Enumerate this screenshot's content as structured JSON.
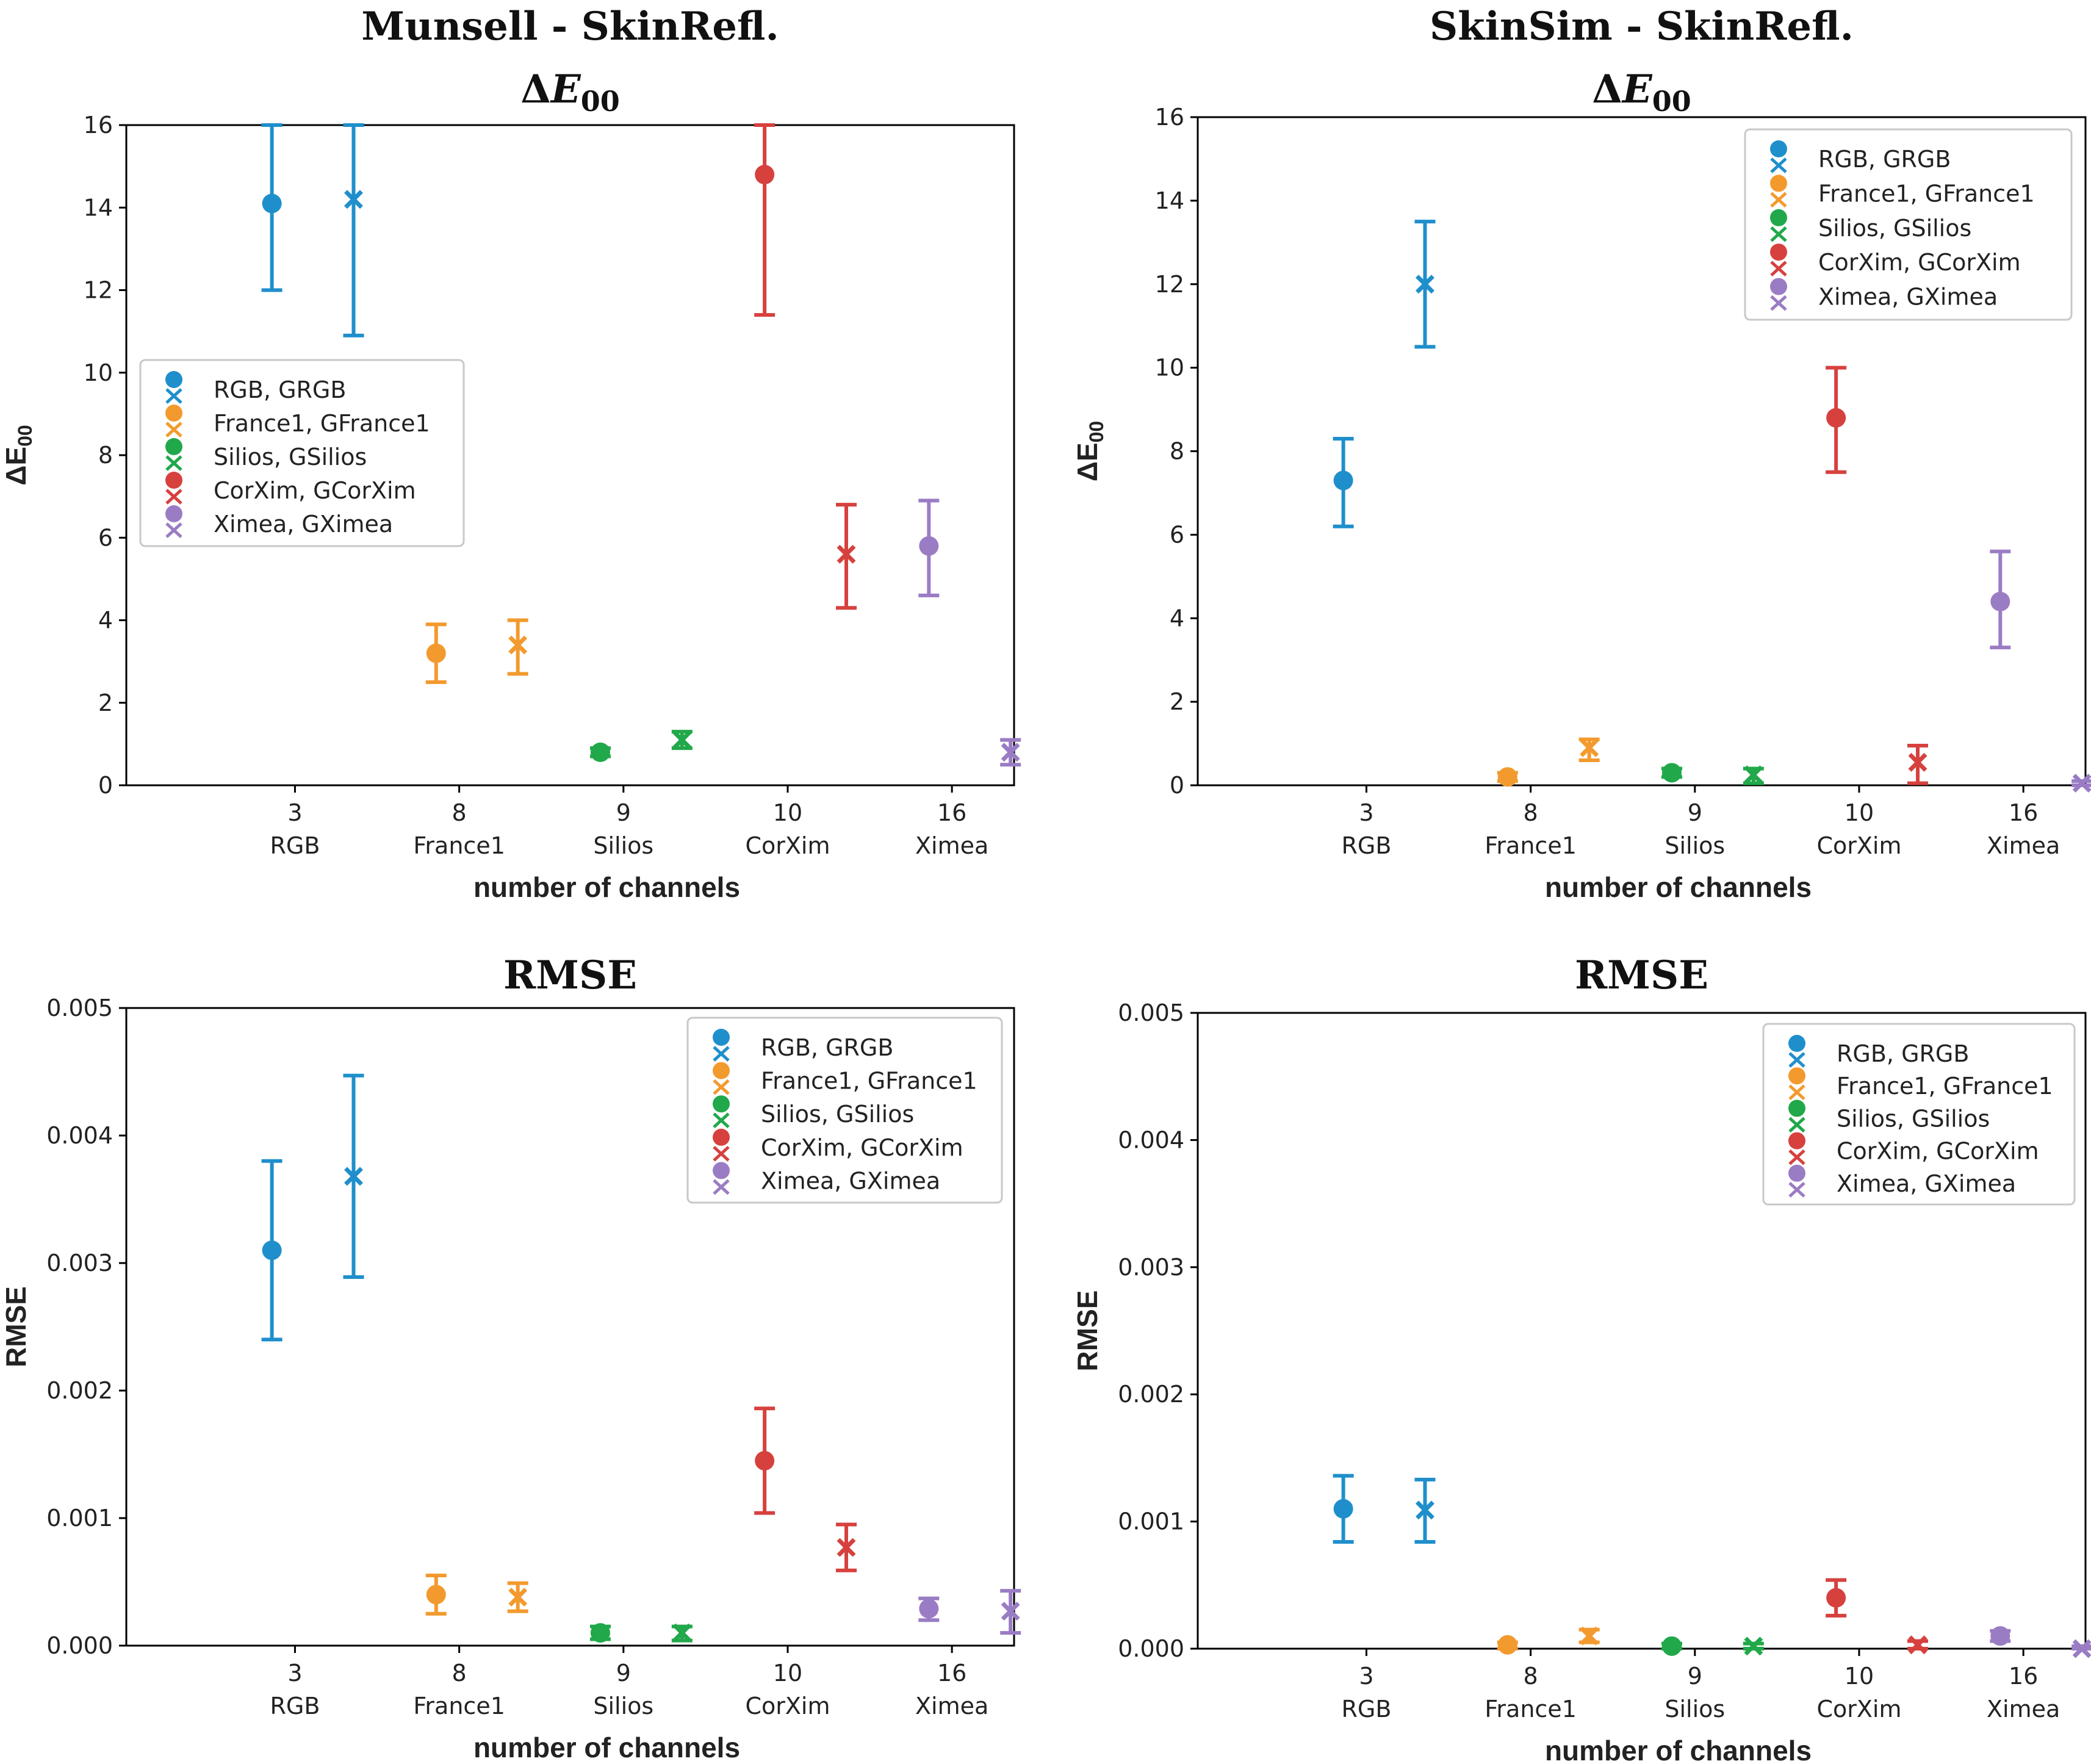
{
  "colors": {
    "RGB": "#1f8fcc",
    "France1": "#f39a2e",
    "Silios": "#21a84a",
    "CorXim": "#d6413e",
    "Ximea": "#9a7cc4"
  },
  "chart_data": [
    {
      "type": "scatter",
      "title": [
        "Munsell - SkinRefl.",
        "ΔE00"
      ],
      "xlabel": "number of channels",
      "ylabel": "ΔE00",
      "ylim": [
        0,
        16
      ],
      "yticks": [
        "0",
        "2",
        "4",
        "6",
        "8",
        "10",
        "12",
        "14",
        "16"
      ],
      "categories": [
        {
          "num": "3",
          "name": "RGB"
        },
        {
          "num": "8",
          "name": "France1"
        },
        {
          "num": "9",
          "name": "Silios"
        },
        {
          "num": "10",
          "name": "CorXim"
        },
        {
          "num": "16",
          "name": "Ximea"
        }
      ],
      "legend": {
        "position": "center-left",
        "entries": [
          "RGB, GRGB",
          "France1, GFrance1",
          "Silios, GSilios",
          "CorXim, GCorXim",
          "Ximea, GXimea"
        ]
      },
      "series": [
        {
          "name": "RGB",
          "marker": "o",
          "y": 14.1,
          "low": 12.0,
          "high": 16.0
        },
        {
          "name": "GRGB",
          "marker": "x",
          "y": 14.2,
          "low": 10.9,
          "high": 16.0
        },
        {
          "name": "France1",
          "marker": "o",
          "y": 3.2,
          "low": 2.5,
          "high": 3.9
        },
        {
          "name": "GFrance1",
          "marker": "x",
          "y": 3.4,
          "low": 2.7,
          "high": 4.0
        },
        {
          "name": "Silios",
          "marker": "o",
          "y": 0.8,
          "low": 0.7,
          "high": 0.9
        },
        {
          "name": "GSilios",
          "marker": "x",
          "y": 1.1,
          "low": 0.9,
          "high": 1.3
        },
        {
          "name": "CorXim",
          "marker": "o",
          "y": 14.8,
          "low": 11.4,
          "high": 16.0
        },
        {
          "name": "GCorXim",
          "marker": "x",
          "y": 5.6,
          "low": 4.3,
          "high": 6.8
        },
        {
          "name": "Ximea",
          "marker": "o",
          "y": 5.8,
          "low": 4.6,
          "high": 6.9
        },
        {
          "name": "GXimea",
          "marker": "x",
          "y": 0.8,
          "low": 0.5,
          "high": 1.1
        }
      ]
    },
    {
      "type": "scatter",
      "title": [
        "SkinSim - SkinRefl.",
        "ΔE00"
      ],
      "xlabel": "number of channels",
      "ylabel": "ΔE00",
      "ylim": [
        0,
        16
      ],
      "yticks": [
        "0",
        "2",
        "4",
        "6",
        "8",
        "10",
        "12",
        "14",
        "16"
      ],
      "categories": [
        {
          "num": "3",
          "name": "RGB"
        },
        {
          "num": "8",
          "name": "France1"
        },
        {
          "num": "9",
          "name": "Silios"
        },
        {
          "num": "10",
          "name": "CorXim"
        },
        {
          "num": "16",
          "name": "Ximea"
        }
      ],
      "legend": {
        "position": "top-right",
        "entries": [
          "RGB, GRGB",
          "France1, GFrance1",
          "Silios, GSilios",
          "CorXim, GCorXim",
          "Ximea, GXimea"
        ]
      },
      "series": [
        {
          "name": "RGB",
          "marker": "o",
          "y": 7.3,
          "low": 6.2,
          "high": 8.3
        },
        {
          "name": "GRGB",
          "marker": "x",
          "y": 12.0,
          "low": 10.5,
          "high": 13.5
        },
        {
          "name": "France1",
          "marker": "o",
          "y": 0.2,
          "low": 0.1,
          "high": 0.3
        },
        {
          "name": "GFrance1",
          "marker": "x",
          "y": 0.9,
          "low": 0.6,
          "high": 1.1
        },
        {
          "name": "Silios",
          "marker": "o",
          "y": 0.3,
          "low": 0.2,
          "high": 0.4
        },
        {
          "name": "GSilios",
          "marker": "x",
          "y": 0.25,
          "low": 0.05,
          "high": 0.4
        },
        {
          "name": "CorXim",
          "marker": "o",
          "y": 8.8,
          "low": 7.5,
          "high": 10.0
        },
        {
          "name": "GCorXim",
          "marker": "x",
          "y": 0.55,
          "low": 0.05,
          "high": 0.95
        },
        {
          "name": "Ximea",
          "marker": "o",
          "y": 4.4,
          "low": 3.3,
          "high": 5.6
        },
        {
          "name": "GXimea",
          "marker": "x",
          "y": 0.05,
          "low": 0.0,
          "high": 0.1
        }
      ]
    },
    {
      "type": "scatter",
      "title": [
        "RMSE"
      ],
      "xlabel": "number of channels",
      "ylabel": "RMSE",
      "ylim": [
        0,
        0.005
      ],
      "yticks": [
        "0.000",
        "0.001",
        "0.002",
        "0.003",
        "0.004",
        "0.005"
      ],
      "categories": [
        {
          "num": "3",
          "name": "RGB"
        },
        {
          "num": "8",
          "name": "France1"
        },
        {
          "num": "9",
          "name": "Silios"
        },
        {
          "num": "10",
          "name": "CorXim"
        },
        {
          "num": "16",
          "name": "Ximea"
        }
      ],
      "legend": {
        "position": "top-right",
        "entries": [
          "RGB, GRGB",
          "France1, GFrance1",
          "Silios, GSilios",
          "CorXim, GCorXim",
          "Ximea, GXimea"
        ]
      },
      "series": [
        {
          "name": "RGB",
          "marker": "o",
          "y": 0.0031,
          "low": 0.0024,
          "high": 0.0038
        },
        {
          "name": "GRGB",
          "marker": "x",
          "y": 0.00368,
          "low": 0.00289,
          "high": 0.00447
        },
        {
          "name": "France1",
          "marker": "o",
          "y": 0.0004,
          "low": 0.00025,
          "high": 0.00055
        },
        {
          "name": "GFrance1",
          "marker": "x",
          "y": 0.00038,
          "low": 0.00027,
          "high": 0.00049
        },
        {
          "name": "Silios",
          "marker": "o",
          "y": 0.0001,
          "low": 5e-05,
          "high": 0.00015
        },
        {
          "name": "GSilios",
          "marker": "x",
          "y": 0.0001,
          "low": 4e-05,
          "high": 0.00015
        },
        {
          "name": "CorXim",
          "marker": "o",
          "y": 0.00145,
          "low": 0.00104,
          "high": 0.00186
        },
        {
          "name": "GCorXim",
          "marker": "x",
          "y": 0.00077,
          "low": 0.00059,
          "high": 0.00095
        },
        {
          "name": "Ximea",
          "marker": "o",
          "y": 0.00029,
          "low": 0.0002,
          "high": 0.00037
        },
        {
          "name": "GXimea",
          "marker": "x",
          "y": 0.00027,
          "low": 0.0001,
          "high": 0.00043
        }
      ]
    },
    {
      "type": "scatter",
      "title": [
        "RMSE"
      ],
      "xlabel": "number of channels",
      "ylabel": "RMSE",
      "ylim": [
        0,
        0.005
      ],
      "yticks": [
        "0.000",
        "0.001",
        "0.002",
        "0.003",
        "0.004",
        "0.005"
      ],
      "categories": [
        {
          "num": "3",
          "name": "RGB"
        },
        {
          "num": "8",
          "name": "France1"
        },
        {
          "num": "9",
          "name": "Silios"
        },
        {
          "num": "10",
          "name": "CorXim"
        },
        {
          "num": "16",
          "name": "Ximea"
        }
      ],
      "legend": {
        "position": "top-right",
        "entries": [
          "RGB, GRGB",
          "France1, GFrance1",
          "Silios, GSilios",
          "CorXim, GCorXim",
          "Ximea, GXimea"
        ]
      },
      "series": [
        {
          "name": "RGB",
          "marker": "o",
          "y": 0.0011,
          "low": 0.00084,
          "high": 0.00136
        },
        {
          "name": "GRGB",
          "marker": "x",
          "y": 0.00109,
          "low": 0.00084,
          "high": 0.00133
        },
        {
          "name": "France1",
          "marker": "o",
          "y": 3e-05,
          "low": 0.0,
          "high": 5e-05
        },
        {
          "name": "GFrance1",
          "marker": "x",
          "y": 0.0001,
          "low": 5e-05,
          "high": 0.00015
        },
        {
          "name": "Silios",
          "marker": "o",
          "y": 2e-05,
          "low": 0.0,
          "high": 4e-05
        },
        {
          "name": "GSilios",
          "marker": "x",
          "y": 2e-05,
          "low": 0.0,
          "high": 4e-05
        },
        {
          "name": "CorXim",
          "marker": "o",
          "y": 0.0004,
          "low": 0.00026,
          "high": 0.00054
        },
        {
          "name": "GCorXim",
          "marker": "x",
          "y": 3e-05,
          "low": 0.0,
          "high": 6e-05
        },
        {
          "name": "Ximea",
          "marker": "o",
          "y": 0.0001,
          "low": 6e-05,
          "high": 0.00014
        },
        {
          "name": "GXimea",
          "marker": "x",
          "y": 0.0,
          "low": 0.0,
          "high": 2e-05
        }
      ]
    }
  ]
}
